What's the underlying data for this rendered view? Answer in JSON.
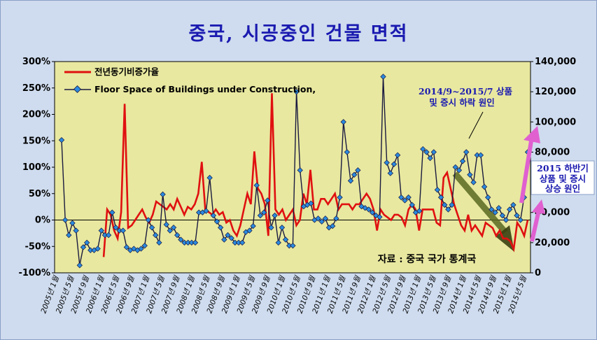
{
  "title": "중국, 시공중인 건물 면적",
  "chart_data": {
    "type": "line",
    "title": "중국, 시공중인 건물 면적",
    "y_left": {
      "ticks": [
        "300%",
        "250%",
        "200%",
        "150%",
        "100%",
        "50%",
        "0%",
        "-50%",
        "-100%"
      ],
      "range": [
        -100,
        300
      ]
    },
    "y_right": {
      "ticks": [
        "140,000",
        "120,000",
        "100,000",
        "80,000",
        "60,000",
        "40,000",
        "20,000",
        "0"
      ],
      "range": [
        0,
        140000
      ]
    },
    "x_ticks": [
      "2005년 1월",
      "2005년 5월",
      "2005년 9월",
      "2006년 1월",
      "2006년 5월",
      "2006년 9월",
      "2007년 1월",
      "2007년 5월",
      "2007년 9월",
      "2008년 1월",
      "2008년 5월",
      "2008년 9월",
      "2009년 1월",
      "2009년 5월",
      "2009년 9월",
      "2010년 1월",
      "2010년 5월",
      "2010년 9월",
      "2011년 1월",
      "2011년 5월",
      "2011년 9월",
      "2012년 1월",
      "2012년 5월",
      "2012년 9월",
      "2013년 1월",
      "2013년 5월",
      "2013년 9월",
      "2014년 1월",
      "2014년 5월",
      "2014년 9월",
      "2015년 1월",
      "2015년 5월"
    ],
    "legend_position": "top-left",
    "series": [
      {
        "name": "전년동기비증가율",
        "axis": "left",
        "color": "#e01010",
        "values": [
          null,
          null,
          null,
          null,
          null,
          null,
          null,
          null,
          null,
          null,
          null,
          null,
          -70,
          20,
          10,
          -20,
          -35,
          15,
          220,
          -15,
          -10,
          0,
          10,
          20,
          5,
          -5,
          10,
          35,
          30,
          25,
          20,
          30,
          20,
          40,
          25,
          10,
          25,
          20,
          30,
          50,
          110,
          20,
          15,
          10,
          20,
          10,
          15,
          -5,
          0,
          -20,
          -30,
          -10,
          20,
          50,
          30,
          130,
          60,
          50,
          30,
          -30,
          240,
          20,
          10,
          20,
          0,
          10,
          20,
          -10,
          0,
          50,
          30,
          95,
          20,
          20,
          40,
          40,
          30,
          40,
          50,
          20,
          30,
          30,
          30,
          20,
          30,
          30,
          40,
          50,
          40,
          20,
          -20,
          20,
          10,
          5,
          0,
          10,
          10,
          5,
          -10,
          20,
          30,
          20,
          -20,
          20,
          20,
          20,
          20,
          -5,
          -10,
          80,
          90,
          60,
          30,
          10,
          -10,
          -20,
          10,
          -20,
          -10,
          -20,
          -30,
          -5,
          -10,
          -15,
          -30,
          -20,
          -35,
          -35,
          -40,
          -55,
          -5,
          -15,
          -30,
          0
        ]
      },
      {
        "name": "Floor Space of Buildings under Construction,",
        "axis": "right",
        "color": "#1a1a40",
        "marker_color": "#2a8ae0",
        "values": [
          88000,
          35000,
          25000,
          33000,
          28000,
          5000,
          17000,
          20000,
          15000,
          15000,
          16000,
          28000,
          25000,
          25000,
          40000,
          30000,
          28000,
          28000,
          17000,
          15000,
          16000,
          15000,
          16000,
          18000,
          35000,
          30000,
          25000,
          20000,
          52000,
          32000,
          28000,
          30000,
          25000,
          22000,
          20000,
          20000,
          20000,
          20000,
          40000,
          40000,
          41000,
          63000,
          38000,
          34000,
          30000,
          22000,
          25000,
          23000,
          20000,
          20000,
          20000,
          27000,
          28000,
          31000,
          58000,
          38000,
          40000,
          48000,
          30000,
          38000,
          20000,
          30000,
          22000,
          18000,
          18000,
          120000,
          68000,
          44000,
          45000,
          46000,
          35000,
          36000,
          34000,
          36000,
          30000,
          31000,
          36000,
          50000,
          100000,
          80000,
          61000,
          65000,
          68000,
          44000,
          43000,
          42000,
          40000,
          38000,
          37000,
          130000,
          73000,
          66000,
          72000,
          78000,
          50000,
          48000,
          50000,
          45000,
          40000,
          41000,
          82000,
          80000,
          76000,
          80000,
          55000,
          50000,
          45000,
          42000,
          45000,
          70000,
          68000,
          74000,
          80000,
          65000,
          60000,
          78000,
          78000,
          57000,
          50000,
          42000,
          40000,
          43000,
          38000,
          35000,
          42000,
          45000,
          38000,
          35000,
          50000,
          80000
        ]
      }
    ]
  },
  "annotations": {
    "decline_line1": "2014/9~2015/7 상품",
    "decline_line2": "및 증시 하락 원인",
    "rise_line1": "2015 하반기",
    "rise_line2": "상품 및 증시",
    "rise_line3": "상승 원인",
    "source": "자료 : 중국 국가 통계국"
  },
  "colors": {
    "plot_bg": "#e8e8a0",
    "page_bg": "#cfdcef",
    "title": "#1a1ab0",
    "arrow_pink": "#e060d0"
  }
}
